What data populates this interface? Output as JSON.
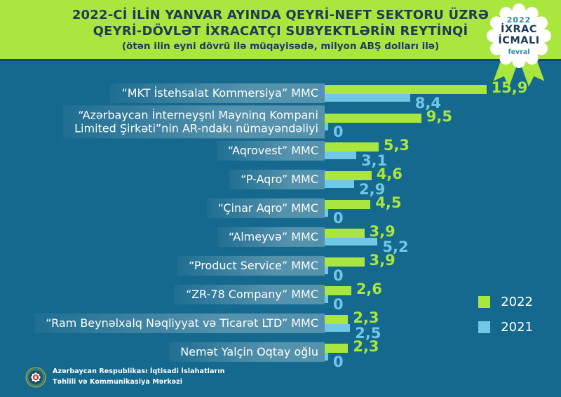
{
  "header": {
    "title_line1": "2022-Cİ İLİN YANVAR AYINDA QEYRİ-NEFT SEKTORU ÜZRƏ",
    "title_line2": "QEYRİ-DÖVLƏT İXRACATÇI SUBYEKTLƏRİN REYTİNQİ",
    "subtitle": "(ötən ilin eyni dövrü ilə müqayisədə, milyon ABŞ dolları ilə)"
  },
  "badge": {
    "year": "2022",
    "line1": "İXRAC",
    "line2": "İCMALI",
    "month": "fevral"
  },
  "chart_data": {
    "type": "bar",
    "orientation": "horizontal",
    "title": "2022-Cİ İLİN YANVAR AYINDA QEYRİ-NEFT SEKTORU ÜZRƏ QEYRİ-DÖVLƏT İXRACATÇI SUBYEKTLƏRİN REYTİNQİ",
    "subtitle": "(ötən ilin eyni dövrü ilə müqayisədə, milyon ABŞ dolları ilə)",
    "unit": "milyon ABŞ dolları",
    "xlim": [
      0,
      16.5
    ],
    "grid": false,
    "legend_position": "right-bottom",
    "categories": [
      "“MKT İstehsalat Kommersiya” MMC",
      "“Azərbaycan İnterneyşnl Mayninq Kompani\nLimited Şirkəti”nin AR-ndakı nümayəndəliyi",
      "“Aqrovest” MMC",
      "“P-Aqro” MMC",
      "“Çinar Aqro” MMC",
      "“Almeyvə” MMC",
      "“Product Service” MMC",
      "“ZR-78 Company” MMC",
      "“Ram Beynəlxalq Nəqliyyat və Ticarət LTD” MMC",
      "Nemət Yalçin Oqtay oğlu"
    ],
    "series": [
      {
        "name": "2022",
        "color": "#a9e63e",
        "values": [
          15.9,
          9.5,
          5.3,
          4.6,
          4.5,
          3.9,
          3.9,
          2.6,
          2.3,
          2.3
        ],
        "labels": [
          "15,9",
          "9,5",
          "5,3",
          "4,6",
          "4,5",
          "3,9",
          "3,9",
          "2,6",
          "2,3",
          "2,3"
        ]
      },
      {
        "name": "2021",
        "color": "#6fc9e6",
        "values": [
          8.4,
          0,
          3.1,
          2.9,
          0,
          5.2,
          0,
          0,
          2.5,
          0
        ],
        "labels": [
          "8,4",
          "0",
          "3,1",
          "2,9",
          "0",
          "5,2",
          "0",
          "0",
          "2,5",
          "0"
        ]
      }
    ]
  },
  "colors": {
    "background": "#16698e",
    "band_green": "#a9e63e",
    "bar_green": "#a9e63e",
    "bar_blue": "#6fc9e6",
    "navy": "#1e3c5a",
    "badge_teal": "#2e8aa6",
    "divider": "#164a68"
  },
  "footer": {
    "org_line1": "Azərbaycan Respublikası İqtisadi İslahatların",
    "org_line2": "Təhlili və Kommunikasiya Mərkəzi"
  }
}
